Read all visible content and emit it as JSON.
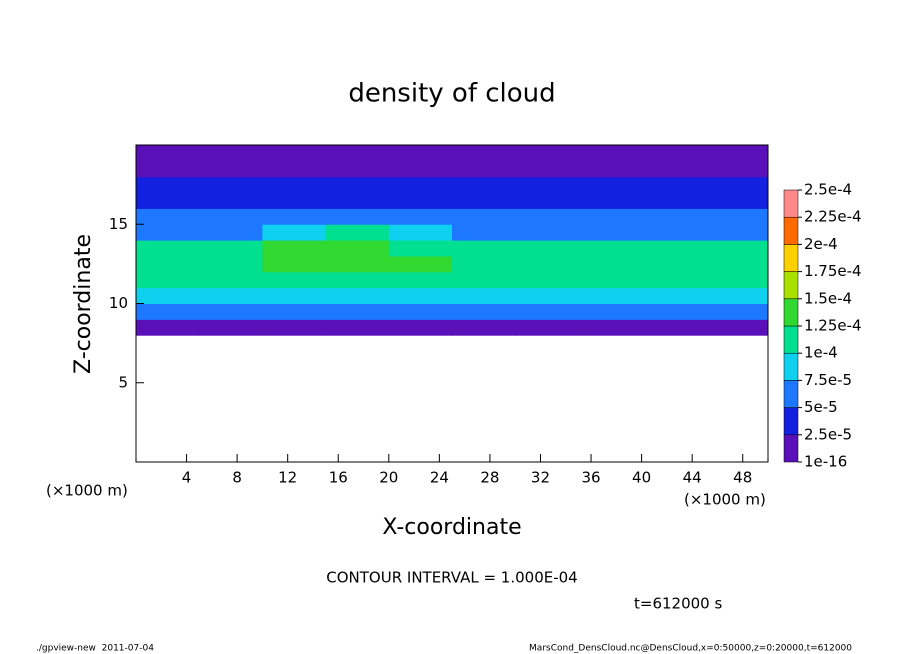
{
  "chart_data": {
    "type": "heatmap",
    "title": "density of cloud",
    "x_label": "X-coordinate",
    "y_label": "Z-coordinate",
    "x_unit_label": "(×1000 m)",
    "x": [
      2.5,
      7.5,
      12.5,
      17.5,
      22.5,
      27.5,
      32.5,
      37.5,
      42.5,
      47.5
    ],
    "y": [
      0.5,
      1.5,
      2.5,
      3.5,
      4.5,
      5.5,
      6.5,
      7.5,
      8.5,
      9.5,
      10.5,
      11.5,
      12.5,
      13.5,
      14.5,
      15.5,
      16.5,
      17.5,
      18.5,
      19.5
    ],
    "values": [
      [
        null,
        null,
        null,
        null,
        null,
        null,
        null,
        null,
        null,
        null
      ],
      [
        null,
        null,
        null,
        null,
        null,
        null,
        null,
        null,
        null,
        null
      ],
      [
        null,
        null,
        null,
        null,
        null,
        null,
        null,
        null,
        null,
        null
      ],
      [
        null,
        null,
        null,
        null,
        null,
        null,
        null,
        null,
        null,
        null
      ],
      [
        null,
        null,
        null,
        null,
        null,
        null,
        null,
        null,
        null,
        null
      ],
      [
        null,
        null,
        null,
        null,
        null,
        null,
        null,
        null,
        null,
        null
      ],
      [
        null,
        null,
        null,
        null,
        null,
        null,
        null,
        null,
        null,
        null
      ],
      [
        null,
        null,
        null,
        null,
        null,
        null,
        null,
        null,
        null,
        null
      ],
      [
        2e-05,
        2e-05,
        2e-05,
        2e-05,
        2e-05,
        2e-05,
        2e-05,
        2e-05,
        2e-05,
        2e-05
      ],
      [
        6e-05,
        6e-05,
        6e-05,
        6e-05,
        6e-05,
        6e-05,
        6e-05,
        6e-05,
        6e-05,
        6e-05
      ],
      [
        8e-05,
        9e-05,
        9e-05,
        9e-05,
        9e-05,
        9e-05,
        9e-05,
        9e-05,
        9e-05,
        9e-05
      ],
      [
        0.00011,
        0.00011,
        0.00012,
        0.00012,
        0.00012,
        0.00011,
        0.00011,
        0.00011,
        0.00011,
        0.00011
      ],
      [
        0.00011,
        0.00011,
        0.00013,
        0.00013,
        0.00013,
        0.00011,
        0.00011,
        0.00011,
        0.00011,
        0.00011
      ],
      [
        0.0001,
        0.0001,
        0.00013,
        0.00013,
        0.00012,
        0.0001,
        0.0001,
        0.0001,
        0.0001,
        0.0001
      ],
      [
        7e-05,
        7e-05,
        9e-05,
        0.00011,
        9e-05,
        7e-05,
        7e-05,
        7e-05,
        7e-05,
        7e-05
      ],
      [
        5e-05,
        5e-05,
        5e-05,
        5e-05,
        6e-05,
        5e-05,
        5e-05,
        5e-05,
        5e-05,
        5e-05
      ],
      [
        4e-05,
        4e-05,
        4e-05,
        4e-05,
        4e-05,
        4e-05,
        4e-05,
        4e-05,
        4e-05,
        4e-05
      ],
      [
        3e-05,
        3e-05,
        3e-05,
        3e-05,
        3e-05,
        3e-05,
        3e-05,
        3e-05,
        3e-05,
        3e-05
      ],
      [
        2e-05,
        2e-05,
        2e-05,
        2e-05,
        2e-05,
        2e-05,
        2e-05,
        2e-05,
        2e-05,
        2e-05
      ],
      [
        1.5e-05,
        1.5e-05,
        1e-05,
        1e-05,
        1.5e-05,
        1.5e-05,
        1.5e-05,
        1e-05,
        1.5e-05,
        1.5e-05
      ]
    ],
    "xlim": [
      0,
      50
    ],
    "xticks": [
      4,
      8,
      12,
      16,
      20,
      24,
      28,
      32,
      36,
      40,
      44,
      48
    ],
    "ylim": [
      0,
      20
    ],
    "yticks": [
      5,
      10,
      15
    ],
    "colorbar_levels": [
      {
        "value": 1e-16,
        "label": "1e-16"
      },
      {
        "value": 2.5e-05,
        "label": "2.5e-5"
      },
      {
        "value": 5e-05,
        "label": "5e-5"
      },
      {
        "value": 7.5e-05,
        "label": "7.5e-5"
      },
      {
        "value": 0.0001,
        "label": "1e-4"
      },
      {
        "value": 0.000125,
        "label": "1.25e-4"
      },
      {
        "value": 0.00015,
        "label": "1.5e-4"
      },
      {
        "value": 0.000175,
        "label": "1.75e-4"
      },
      {
        "value": 0.0002,
        "label": "2e-4"
      },
      {
        "value": 0.000225,
        "label": "2.25e-4"
      },
      {
        "value": 0.00025,
        "label": "2.5e-4"
      }
    ],
    "colorbar_colors": [
      "#5a10b8",
      "#1420e0",
      "#1e78ff",
      "#10d0f0",
      "#00e090",
      "#30d830",
      "#a8e000",
      "#ffd000",
      "#ff6a00",
      "#ff8888"
    ],
    "contour_note": "CONTOUR INTERVAL = 1.000E-04",
    "time_note": "t=612000 s",
    "footer_left": "./gpview-new  2011-07-04",
    "footer_right": "MarsCond_DensCloud.nc@DensCloud,x=0:50000,z=0:20000,t=612000"
  }
}
